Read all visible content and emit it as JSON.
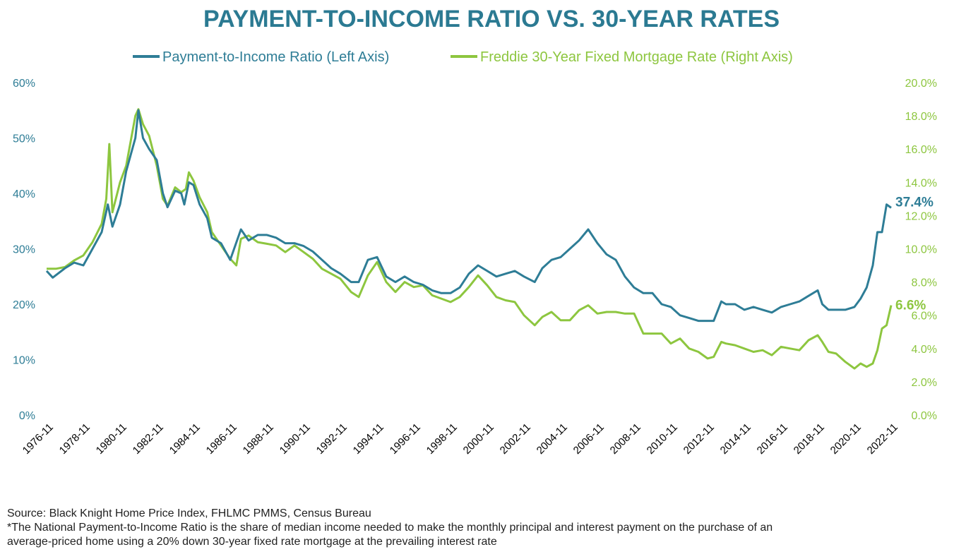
{
  "chart_data": {
    "type": "line",
    "title": "PAYMENT-TO-INCOME RATIO VS. 30-YEAR RATES",
    "legend_position": "top-center",
    "grid": false,
    "colors": {
      "title": "#2b7a92",
      "ratio": "#2e7d96",
      "rate": "#8dc63f"
    },
    "left_axis": {
      "ylim": [
        0,
        60
      ],
      "ticks": [
        0,
        10,
        20,
        30,
        40,
        50,
        60
      ],
      "tick_labels": [
        "0%",
        "10%",
        "20%",
        "30%",
        "40%",
        "50%",
        "60%"
      ]
    },
    "right_axis": {
      "ylim": [
        0,
        20
      ],
      "ticks": [
        0,
        2,
        4,
        6,
        8,
        10,
        12,
        14,
        16,
        18,
        20
      ],
      "tick_labels": [
        "0.0%",
        "2.0%",
        "4.0%",
        "6.0%",
        "8.0%",
        "10.0%",
        "12.0%",
        "14.0%",
        "16.0%",
        "18.0%",
        "20.0%"
      ]
    },
    "x_tick_labels": [
      "1976-11",
      "1978-11",
      "1980-11",
      "1982-11",
      "1984-11",
      "1986-11",
      "1988-11",
      "1990-11",
      "1992-11",
      "1994-11",
      "1996-11",
      "1998-11",
      "2000-11",
      "2002-11",
      "2004-11",
      "2006-11",
      "2008-11",
      "2010-11",
      "2012-11",
      "2014-11",
      "2016-11",
      "2018-11",
      "2020-11",
      "2022-11"
    ],
    "series": [
      {
        "name": "Payment-to-Income Ratio (Left Axis)",
        "axis": "left",
        "end_label": "37.4%",
        "points": [
          [
            "1976-11",
            26
          ],
          [
            "1977-03",
            24.8
          ],
          [
            "1977-11",
            26.5
          ],
          [
            "1978-05",
            27.5
          ],
          [
            "1978-11",
            27
          ],
          [
            "1979-05",
            30
          ],
          [
            "1979-11",
            33
          ],
          [
            "1980-03",
            38
          ],
          [
            "1980-06",
            34
          ],
          [
            "1980-11",
            38
          ],
          [
            "1981-03",
            44
          ],
          [
            "1981-09",
            50
          ],
          [
            "1981-11",
            55
          ],
          [
            "1982-02",
            50
          ],
          [
            "1982-06",
            48
          ],
          [
            "1982-11",
            46
          ],
          [
            "1983-03",
            40
          ],
          [
            "1983-06",
            37.5
          ],
          [
            "1983-11",
            40.5
          ],
          [
            "1984-03",
            40
          ],
          [
            "1984-05",
            38
          ],
          [
            "1984-08",
            42
          ],
          [
            "1984-11",
            41.5
          ],
          [
            "1985-03",
            38
          ],
          [
            "1985-08",
            35.5
          ],
          [
            "1985-11",
            32
          ],
          [
            "1986-05",
            31
          ],
          [
            "1986-11",
            28
          ],
          [
            "1987-06",
            33.5
          ],
          [
            "1987-11",
            31.5
          ],
          [
            "1988-05",
            32.5
          ],
          [
            "1988-11",
            32.5
          ],
          [
            "1989-05",
            32
          ],
          [
            "1989-11",
            31
          ],
          [
            "1990-05",
            31
          ],
          [
            "1990-11",
            30.5
          ],
          [
            "1991-05",
            29.5
          ],
          [
            "1991-11",
            28
          ],
          [
            "1992-05",
            26.5
          ],
          [
            "1992-11",
            25.5
          ],
          [
            "1993-06",
            24
          ],
          [
            "1993-11",
            24
          ],
          [
            "1994-05",
            28
          ],
          [
            "1994-11",
            28.5
          ],
          [
            "1995-05",
            25
          ],
          [
            "1995-11",
            24
          ],
          [
            "1996-05",
            25
          ],
          [
            "1996-11",
            24
          ],
          [
            "1997-05",
            23.5
          ],
          [
            "1997-11",
            22.5
          ],
          [
            "1998-05",
            22
          ],
          [
            "1998-11",
            22
          ],
          [
            "1999-05",
            23
          ],
          [
            "1999-11",
            25.5
          ],
          [
            "2000-05",
            27
          ],
          [
            "2000-11",
            26
          ],
          [
            "2001-05",
            25
          ],
          [
            "2001-11",
            25.5
          ],
          [
            "2002-05",
            26
          ],
          [
            "2002-11",
            25
          ],
          [
            "2003-06",
            24
          ],
          [
            "2003-11",
            26.5
          ],
          [
            "2004-05",
            28
          ],
          [
            "2004-11",
            28.5
          ],
          [
            "2005-05",
            30
          ],
          [
            "2005-11",
            31.5
          ],
          [
            "2006-05",
            33.5
          ],
          [
            "2006-11",
            31
          ],
          [
            "2007-05",
            29
          ],
          [
            "2007-11",
            28
          ],
          [
            "2008-05",
            25
          ],
          [
            "2008-11",
            23
          ],
          [
            "2009-05",
            22
          ],
          [
            "2009-11",
            22
          ],
          [
            "2010-05",
            20
          ],
          [
            "2010-11",
            19.5
          ],
          [
            "2011-05",
            18
          ],
          [
            "2011-11",
            17.5
          ],
          [
            "2012-05",
            17
          ],
          [
            "2012-11",
            17
          ],
          [
            "2013-03",
            17
          ],
          [
            "2013-08",
            20.5
          ],
          [
            "2013-11",
            20
          ],
          [
            "2014-05",
            20
          ],
          [
            "2014-11",
            19
          ],
          [
            "2015-05",
            19.5
          ],
          [
            "2015-11",
            19
          ],
          [
            "2016-05",
            18.5
          ],
          [
            "2016-11",
            19.5
          ],
          [
            "2017-05",
            20
          ],
          [
            "2017-11",
            20.5
          ],
          [
            "2018-05",
            21.5
          ],
          [
            "2018-11",
            22.5
          ],
          [
            "2019-02",
            20
          ],
          [
            "2019-06",
            19
          ],
          [
            "2019-11",
            19
          ],
          [
            "2020-05",
            19
          ],
          [
            "2020-11",
            19.5
          ],
          [
            "2021-03",
            21
          ],
          [
            "2021-07",
            23
          ],
          [
            "2021-11",
            27
          ],
          [
            "2022-02",
            33
          ],
          [
            "2022-05",
            33
          ],
          [
            "2022-08",
            38
          ],
          [
            "2022-11",
            37.4
          ]
        ]
      },
      {
        "name": "Freddie 30-Year Fixed Mortgage Rate (Right Axis)",
        "axis": "right",
        "end_label": "6.6%",
        "points": [
          [
            "1976-11",
            8.8
          ],
          [
            "1977-05",
            8.8
          ],
          [
            "1977-11",
            8.9
          ],
          [
            "1978-05",
            9.3
          ],
          [
            "1978-11",
            9.6
          ],
          [
            "1979-05",
            10.4
          ],
          [
            "1979-11",
            11.5
          ],
          [
            "1980-02",
            13
          ],
          [
            "1980-04",
            16.3
          ],
          [
            "1980-06",
            12.2
          ],
          [
            "1980-11",
            14
          ],
          [
            "1981-03",
            15
          ],
          [
            "1981-09",
            18
          ],
          [
            "1981-11",
            18.4
          ],
          [
            "1982-02",
            17.5
          ],
          [
            "1982-06",
            16.8
          ],
          [
            "1982-11",
            15
          ],
          [
            "1983-03",
            13
          ],
          [
            "1983-06",
            12.6
          ],
          [
            "1983-11",
            13.7
          ],
          [
            "1984-03",
            13.4
          ],
          [
            "1984-06",
            13.6
          ],
          [
            "1984-08",
            14.6
          ],
          [
            "1984-11",
            14.1
          ],
          [
            "1985-03",
            13.1
          ],
          [
            "1985-08",
            12.2
          ],
          [
            "1985-11",
            11
          ],
          [
            "1986-05",
            10.2
          ],
          [
            "1986-11",
            9.4
          ],
          [
            "1987-03",
            9.0
          ],
          [
            "1987-06",
            10.6
          ],
          [
            "1987-11",
            10.8
          ],
          [
            "1988-05",
            10.4
          ],
          [
            "1988-11",
            10.3
          ],
          [
            "1989-05",
            10.2
          ],
          [
            "1989-11",
            9.8
          ],
          [
            "1990-05",
            10.2
          ],
          [
            "1990-11",
            9.8
          ],
          [
            "1991-05",
            9.4
          ],
          [
            "1991-11",
            8.8
          ],
          [
            "1992-05",
            8.5
          ],
          [
            "1992-11",
            8.2
          ],
          [
            "1993-06",
            7.4
          ],
          [
            "1993-11",
            7.1
          ],
          [
            "1994-05",
            8.4
          ],
          [
            "1994-11",
            9.2
          ],
          [
            "1995-05",
            8
          ],
          [
            "1995-11",
            7.4
          ],
          [
            "1996-05",
            8
          ],
          [
            "1996-11",
            7.7
          ],
          [
            "1997-05",
            7.8
          ],
          [
            "1997-11",
            7.2
          ],
          [
            "1998-05",
            7
          ],
          [
            "1998-11",
            6.8
          ],
          [
            "1999-05",
            7.1
          ],
          [
            "1999-11",
            7.7
          ],
          [
            "2000-05",
            8.4
          ],
          [
            "2000-11",
            7.8
          ],
          [
            "2001-05",
            7.1
          ],
          [
            "2001-11",
            6.9
          ],
          [
            "2002-05",
            6.8
          ],
          [
            "2002-11",
            6
          ],
          [
            "2003-06",
            5.4
          ],
          [
            "2003-11",
            5.9
          ],
          [
            "2004-05",
            6.2
          ],
          [
            "2004-11",
            5.7
          ],
          [
            "2005-05",
            5.7
          ],
          [
            "2005-11",
            6.3
          ],
          [
            "2006-05",
            6.6
          ],
          [
            "2006-11",
            6.1
          ],
          [
            "2007-05",
            6.2
          ],
          [
            "2007-11",
            6.2
          ],
          [
            "2008-05",
            6.1
          ],
          [
            "2008-11",
            6.1
          ],
          [
            "2009-05",
            4.9
          ],
          [
            "2009-11",
            4.9
          ],
          [
            "2010-05",
            4.9
          ],
          [
            "2010-11",
            4.3
          ],
          [
            "2011-05",
            4.6
          ],
          [
            "2011-11",
            4
          ],
          [
            "2012-05",
            3.8
          ],
          [
            "2012-11",
            3.4
          ],
          [
            "2013-03",
            3.5
          ],
          [
            "2013-08",
            4.4
          ],
          [
            "2013-11",
            4.3
          ],
          [
            "2014-05",
            4.2
          ],
          [
            "2014-11",
            4
          ],
          [
            "2015-05",
            3.8
          ],
          [
            "2015-11",
            3.9
          ],
          [
            "2016-05",
            3.6
          ],
          [
            "2016-11",
            4.1
          ],
          [
            "2017-05",
            4
          ],
          [
            "2017-11",
            3.9
          ],
          [
            "2018-05",
            4.5
          ],
          [
            "2018-11",
            4.8
          ],
          [
            "2019-02",
            4.4
          ],
          [
            "2019-06",
            3.8
          ],
          [
            "2019-11",
            3.7
          ],
          [
            "2020-05",
            3.2
          ],
          [
            "2020-11",
            2.8
          ],
          [
            "2021-03",
            3.1
          ],
          [
            "2021-07",
            2.9
          ],
          [
            "2021-11",
            3.1
          ],
          [
            "2022-02",
            3.9
          ],
          [
            "2022-05",
            5.2
          ],
          [
            "2022-08",
            5.4
          ],
          [
            "2022-11",
            6.6
          ]
        ]
      }
    ]
  },
  "footnotes": {
    "source": "Source: Black Knight Home Price Index, FHLMC PMMS, Census Bureau",
    "note_line1": "*The National Payment-to-Income Ratio is the share of median income needed to make the monthly principal and interest payment on the purchase of an",
    "note_line2": "average-priced home using a 20% down 30-year fixed rate mortgage at the prevailing interest rate"
  }
}
